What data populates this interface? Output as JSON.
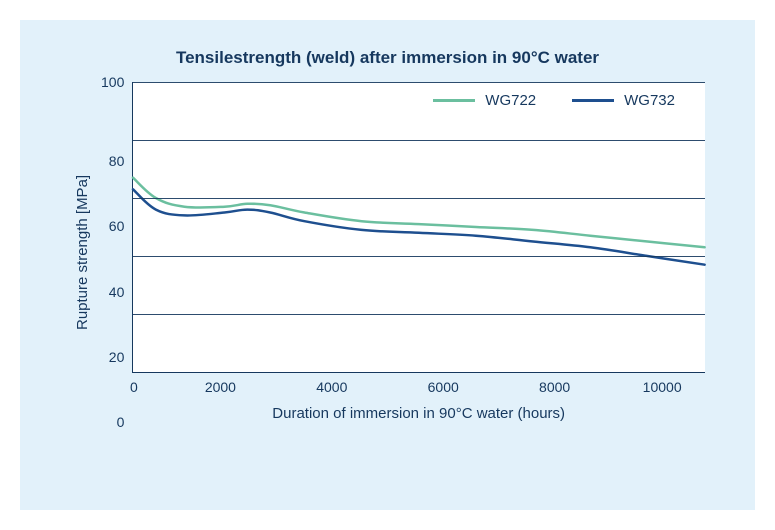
{
  "chart": {
    "type": "line",
    "title": "Tensilestrength (weld)  after immersion in 90°C water",
    "title_fontsize": 17,
    "title_color": "#16385e",
    "xlabel": "Duration of immersion in 90°C water (hours)",
    "ylabel": "Rupture strength [MPa]",
    "label_fontsize": 15,
    "tick_fontsize": 14,
    "text_color": "#16385e",
    "background_color": "#e2f1fa",
    "plot_background": "#ffffff",
    "axis_color": "#16385e",
    "grid_color": "#16385e",
    "xlim": [
      0,
      10000
    ],
    "ylim": [
      0,
      100
    ],
    "xtick_step": 2000,
    "ytick_step": 20,
    "xticks": [
      "0",
      "2000",
      "4000",
      "6000",
      "8000",
      "10000"
    ],
    "yticks": [
      "100",
      "80",
      "60",
      "40",
      "20",
      "0"
    ],
    "line_width": 2.5,
    "legend_position": "top-right",
    "series": [
      {
        "name": "WG722",
        "color": "#6bbf9f",
        "x": [
          0,
          400,
          900,
          1600,
          2000,
          2400,
          3000,
          4000,
          5000,
          6000,
          7000,
          8000,
          9000,
          10000
        ],
        "y": [
          67,
          60,
          57,
          57,
          58,
          57.5,
          55,
          52,
          51,
          50,
          49,
          47,
          45,
          43
        ]
      },
      {
        "name": "WG732",
        "color": "#1e4f8f",
        "x": [
          0,
          400,
          900,
          1600,
          2000,
          2400,
          3000,
          4000,
          5000,
          6000,
          7000,
          8000,
          9000,
          10000
        ],
        "y": [
          63,
          56,
          54,
          55,
          56,
          55,
          52,
          49,
          48,
          47,
          45,
          43,
          40,
          37
        ]
      }
    ]
  }
}
